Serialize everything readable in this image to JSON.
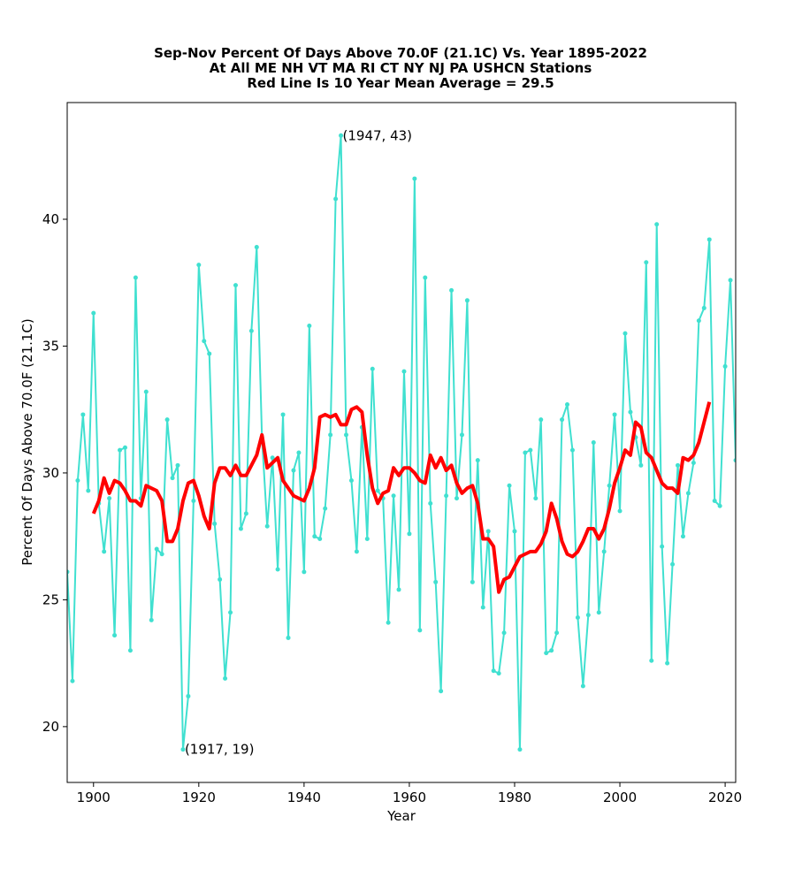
{
  "chart_data": {
    "type": "line",
    "title_lines": [
      "Sep-Nov Percent Of Days Above 70.0F (21.1C) Vs. Year 1895-2022",
      "At All ME NH VT MA RI CT NY NJ PA USHCN Stations",
      "Red Line Is 10 Year Mean  Average = 29.5"
    ],
    "xlabel": "Year",
    "ylabel": "Percent Of Days Above 70.0F (21.1C)",
    "xlim": [
      1895,
      2022
    ],
    "ylim": [
      17.8,
      44.6
    ],
    "xticks": [
      1900,
      1920,
      1940,
      1960,
      1980,
      2000,
      2020
    ],
    "yticks": [
      20,
      25,
      30,
      35,
      40
    ],
    "grid": false,
    "legend": "none",
    "series": [
      {
        "name": "Annual percent",
        "color": "#40e0d0",
        "marker": "circle",
        "x": [
          1895,
          1896,
          1897,
          1898,
          1899,
          1900,
          1901,
          1902,
          1903,
          1904,
          1905,
          1906,
          1907,
          1908,
          1909,
          1910,
          1911,
          1912,
          1913,
          1914,
          1915,
          1916,
          1917,
          1918,
          1919,
          1920,
          1921,
          1922,
          1923,
          1924,
          1925,
          1926,
          1927,
          1928,
          1929,
          1930,
          1931,
          1932,
          1933,
          1934,
          1935,
          1936,
          1937,
          1938,
          1939,
          1940,
          1941,
          1942,
          1943,
          1944,
          1945,
          1946,
          1947,
          1948,
          1949,
          1950,
          1951,
          1952,
          1953,
          1954,
          1955,
          1956,
          1957,
          1958,
          1959,
          1960,
          1961,
          1962,
          1963,
          1964,
          1965,
          1966,
          1967,
          1968,
          1969,
          1970,
          1971,
          1972,
          1973,
          1974,
          1975,
          1976,
          1977,
          1978,
          1979,
          1980,
          1981,
          1982,
          1983,
          1984,
          1985,
          1986,
          1987,
          1988,
          1989,
          1990,
          1991,
          1992,
          1993,
          1994,
          1995,
          1996,
          1997,
          1998,
          1999,
          2000,
          2001,
          2002,
          2003,
          2004,
          2005,
          2006,
          2007,
          2008,
          2009,
          2010,
          2011,
          2012,
          2013,
          2014,
          2015,
          2016,
          2017,
          2018,
          2019,
          2020,
          2021,
          2022
        ],
        "values": [
          26.1,
          21.8,
          29.7,
          32.3,
          29.3,
          36.3,
          28.8,
          26.9,
          29.0,
          23.6,
          30.9,
          31.0,
          23.0,
          37.7,
          29.0,
          33.2,
          24.2,
          27.0,
          26.8,
          32.1,
          29.8,
          30.3,
          19.1,
          21.2,
          28.9,
          38.2,
          35.2,
          34.7,
          28.0,
          25.8,
          21.9,
          24.5,
          37.4,
          27.8,
          28.4,
          35.6,
          38.9,
          31.4,
          27.9,
          30.6,
          26.2,
          32.3,
          23.5,
          30.1,
          30.8,
          26.1,
          35.8,
          27.5,
          27.4,
          28.6,
          31.5,
          40.8,
          43.3,
          31.5,
          29.7,
          26.9,
          31.8,
          27.4,
          34.1,
          29.3,
          29.0,
          24.1,
          29.1,
          25.4,
          34.0,
          27.6,
          41.6,
          23.8,
          37.7,
          28.8,
          25.7,
          21.4,
          29.1,
          37.2,
          29.0,
          31.5,
          36.8,
          25.7,
          30.5,
          24.7,
          27.7,
          22.2,
          22.1,
          23.7,
          29.5,
          27.7,
          19.1,
          30.8,
          30.9,
          29.0,
          32.1,
          22.9,
          23.0,
          23.7,
          32.1,
          32.7,
          30.9,
          24.3,
          21.6,
          24.4,
          31.2,
          24.5,
          26.9,
          29.5,
          32.3,
          28.5,
          35.5,
          32.4,
          31.4,
          30.3,
          38.3,
          22.6,
          39.8,
          27.1,
          22.5,
          26.4,
          30.3,
          27.5,
          29.2,
          30.4,
          36.0,
          36.5,
          39.2,
          28.9,
          28.7,
          34.2,
          37.6,
          30.5
        ]
      },
      {
        "name": "10 Year Mean",
        "color": "#ff0000",
        "marker": "none",
        "x": [
          1900,
          1901,
          1902,
          1903,
          1904,
          1905,
          1906,
          1907,
          1908,
          1909,
          1910,
          1911,
          1912,
          1913,
          1914,
          1915,
          1916,
          1917,
          1918,
          1919,
          1920,
          1921,
          1922,
          1923,
          1924,
          1925,
          1926,
          1927,
          1928,
          1929,
          1930,
          1931,
          1932,
          1933,
          1934,
          1935,
          1936,
          1937,
          1938,
          1939,
          1940,
          1941,
          1942,
          1943,
          1944,
          1945,
          1946,
          1947,
          1948,
          1949,
          1950,
          1951,
          1952,
          1953,
          1954,
          1955,
          1956,
          1957,
          1958,
          1959,
          1960,
          1961,
          1962,
          1963,
          1964,
          1965,
          1966,
          1967,
          1968,
          1969,
          1970,
          1971,
          1972,
          1973,
          1974,
          1975,
          1976,
          1977,
          1978,
          1979,
          1980,
          1981,
          1982,
          1983,
          1984,
          1985,
          1986,
          1987,
          1988,
          1989,
          1990,
          1991,
          1992,
          1993,
          1994,
          1995,
          1996,
          1997,
          1998,
          1999,
          2000,
          2001,
          2002,
          2003,
          2004,
          2005,
          2006,
          2007,
          2008,
          2009,
          2010,
          2011,
          2012,
          2013,
          2014,
          2015,
          2016,
          2017
        ],
        "values": [
          28.4,
          28.9,
          29.8,
          29.2,
          29.7,
          29.6,
          29.3,
          28.9,
          28.9,
          28.7,
          29.5,
          29.4,
          29.3,
          28.9,
          27.3,
          27.3,
          27.8,
          28.9,
          29.6,
          29.7,
          29.1,
          28.3,
          27.8,
          29.6,
          30.2,
          30.2,
          29.9,
          30.3,
          29.9,
          29.9,
          30.3,
          30.7,
          31.5,
          30.2,
          30.4,
          30.6,
          29.7,
          29.4,
          29.1,
          29.0,
          28.9,
          29.4,
          30.2,
          32.2,
          32.3,
          32.2,
          32.3,
          31.9,
          31.9,
          32.5,
          32.6,
          32.4,
          30.7,
          29.4,
          28.8,
          29.2,
          29.3,
          30.2,
          29.9,
          30.2,
          30.2,
          30.0,
          29.7,
          29.6,
          30.7,
          30.2,
          30.6,
          30.1,
          30.3,
          29.6,
          29.2,
          29.4,
          29.5,
          28.8,
          27.4,
          27.4,
          27.1,
          25.3,
          25.8,
          25.9,
          26.3,
          26.7,
          26.8,
          26.9,
          26.9,
          27.2,
          27.7,
          28.8,
          28.2,
          27.3,
          26.8,
          26.7,
          26.9,
          27.3,
          27.8,
          27.8,
          27.4,
          27.8,
          28.6,
          29.6,
          30.2,
          30.9,
          30.7,
          32.0,
          31.8,
          30.8,
          30.6,
          30.1,
          29.6,
          29.4,
          29.4,
          29.2,
          30.6,
          30.5,
          30.7,
          31.2,
          32.0,
          32.8
        ]
      }
    ],
    "annotations": [
      {
        "text": "(1947, 43)",
        "x": 1947,
        "y": 43.3
      },
      {
        "text": "(1917, 19)",
        "x": 1917,
        "y": 19.1
      }
    ]
  }
}
